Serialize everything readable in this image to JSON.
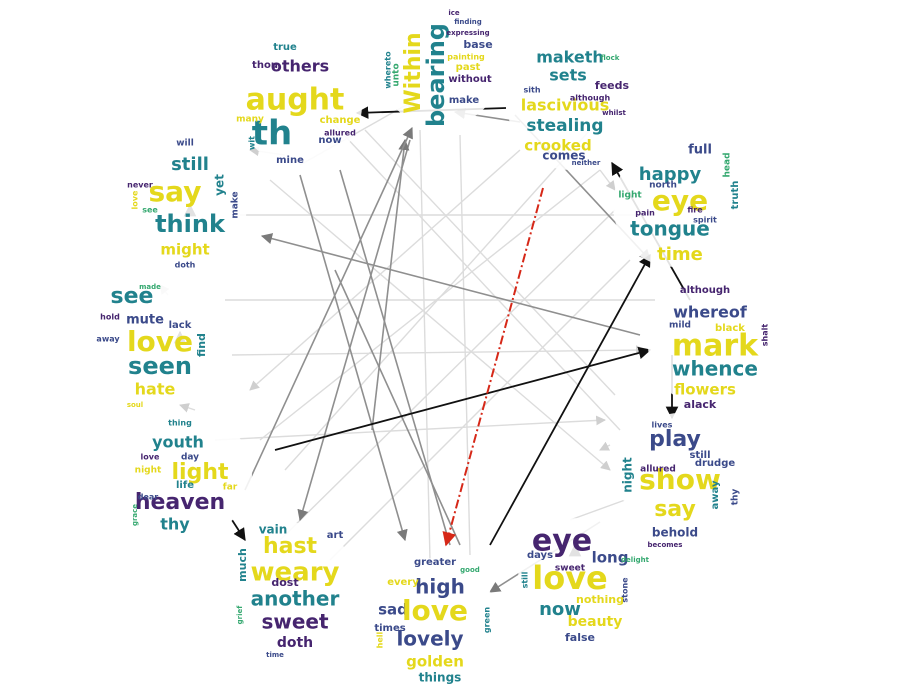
{
  "palette": {
    "purple": "#46256f",
    "navy": "#3b4a8a",
    "teal": "#21828d",
    "green": "#34a86f",
    "lime": "#9fd13b",
    "yellow": "#e4d81c",
    "edge_dark": "#111111",
    "edge_mid": "#8a8a8a",
    "edge_light": "#d6d6d6",
    "edge_highlight": "#d62818"
  },
  "clouds": [
    {
      "id": "c0",
      "words": [
        {
          "t": "Within",
          "s": 22,
          "c": "yellow",
          "r": -90
        },
        {
          "t": "bearing",
          "s": 24,
          "c": "teal",
          "r": -90
        },
        {
          "t": "base",
          "s": 11,
          "c": "navy"
        },
        {
          "t": "without",
          "s": 10,
          "c": "purple"
        },
        {
          "t": "past",
          "s": 10,
          "c": "yellow"
        },
        {
          "t": "make",
          "s": 10,
          "c": "navy"
        },
        {
          "t": "unto",
          "s": 9,
          "c": "green",
          "r": -90
        },
        {
          "t": "painting",
          "s": 8,
          "c": "yellow"
        },
        {
          "t": "whereto",
          "s": 8,
          "c": "teal",
          "r": -90
        },
        {
          "t": "expressing",
          "s": 7,
          "c": "purple"
        },
        {
          "t": "finding",
          "s": 7,
          "c": "navy"
        },
        {
          "t": "ice",
          "s": 7,
          "c": "purple"
        }
      ]
    },
    {
      "id": "c1",
      "words": [
        {
          "t": "maketh",
          "s": 16,
          "c": "teal"
        },
        {
          "t": "sets",
          "s": 16,
          "c": "teal"
        },
        {
          "t": "lascivious",
          "s": 16,
          "c": "yellow"
        },
        {
          "t": "stealing",
          "s": 17,
          "c": "teal"
        },
        {
          "t": "crooked",
          "s": 15,
          "c": "yellow"
        },
        {
          "t": "comes",
          "s": 12,
          "c": "navy"
        },
        {
          "t": "feeds",
          "s": 11,
          "c": "purple"
        },
        {
          "t": "although",
          "s": 8,
          "c": "purple"
        },
        {
          "t": "sith",
          "s": 8,
          "c": "navy"
        },
        {
          "t": "whilst",
          "s": 7,
          "c": "purple"
        },
        {
          "t": "neither",
          "s": 7,
          "c": "navy"
        },
        {
          "t": "flock",
          "s": 7,
          "c": "green"
        }
      ]
    },
    {
      "id": "c2",
      "words": [
        {
          "t": "full",
          "s": 13,
          "c": "navy"
        },
        {
          "t": "happy",
          "s": 18,
          "c": "teal"
        },
        {
          "t": "eye",
          "s": 28,
          "c": "yellow"
        },
        {
          "t": "tongue",
          "s": 20,
          "c": "teal"
        },
        {
          "t": "time",
          "s": 18,
          "c": "yellow"
        },
        {
          "t": "truth",
          "s": 10,
          "c": "teal",
          "r": -90
        },
        {
          "t": "north",
          "s": 9,
          "c": "navy"
        },
        {
          "t": "light",
          "s": 9,
          "c": "green"
        },
        {
          "t": "pain",
          "s": 8,
          "c": "purple"
        },
        {
          "t": "spirit",
          "s": 8,
          "c": "navy"
        },
        {
          "t": "head",
          "s": 9,
          "c": "green",
          "r": -90
        },
        {
          "t": "fire",
          "s": 8,
          "c": "purple"
        }
      ]
    },
    {
      "id": "c3",
      "words": [
        {
          "t": "although",
          "s": 10,
          "c": "purple"
        },
        {
          "t": "whereof",
          "s": 16,
          "c": "navy"
        },
        {
          "t": "mark",
          "s": 30,
          "c": "yellow"
        },
        {
          "t": "whence",
          "s": 20,
          "c": "teal"
        },
        {
          "t": "flowers",
          "s": 15,
          "c": "yellow"
        },
        {
          "t": "alack",
          "s": 11,
          "c": "purple"
        },
        {
          "t": "mild",
          "s": 9,
          "c": "navy"
        },
        {
          "t": "black",
          "s": 10,
          "c": "yellow"
        },
        {
          "t": "shalt",
          "s": 8,
          "c": "purple",
          "r": -90
        }
      ]
    },
    {
      "id": "c4",
      "words": [
        {
          "t": "lives",
          "s": 8,
          "c": "navy"
        },
        {
          "t": "play",
          "s": 22,
          "c": "navy"
        },
        {
          "t": "still",
          "s": 10,
          "c": "navy"
        },
        {
          "t": "drudge",
          "s": 10,
          "c": "navy"
        },
        {
          "t": "show",
          "s": 28,
          "c": "yellow"
        },
        {
          "t": "say",
          "s": 22,
          "c": "yellow"
        },
        {
          "t": "behold",
          "s": 12,
          "c": "navy"
        },
        {
          "t": "night",
          "s": 12,
          "c": "teal",
          "r": -90
        },
        {
          "t": "away",
          "s": 10,
          "c": "teal",
          "r": -90
        },
        {
          "t": "thy",
          "s": 9,
          "c": "navy",
          "r": -90
        },
        {
          "t": "allured",
          "s": 9,
          "c": "purple"
        },
        {
          "t": "becomes",
          "s": 7,
          "c": "purple"
        }
      ]
    },
    {
      "id": "c5",
      "words": [
        {
          "t": "eye",
          "s": 30,
          "c": "purple"
        },
        {
          "t": "long",
          "s": 15,
          "c": "navy"
        },
        {
          "t": "love",
          "s": 32,
          "c": "yellow"
        },
        {
          "t": "now",
          "s": 18,
          "c": "teal"
        },
        {
          "t": "nothing",
          "s": 11,
          "c": "yellow"
        },
        {
          "t": "beauty",
          "s": 14,
          "c": "yellow"
        },
        {
          "t": "false",
          "s": 11,
          "c": "navy"
        },
        {
          "t": "days",
          "s": 10,
          "c": "navy"
        },
        {
          "t": "sweet",
          "s": 9,
          "c": "purple"
        },
        {
          "t": "still",
          "s": 8,
          "c": "teal",
          "r": -90
        },
        {
          "t": "delight",
          "s": 7,
          "c": "green"
        },
        {
          "t": "stone",
          "s": 8,
          "c": "navy",
          "r": -90
        }
      ]
    },
    {
      "id": "c6",
      "words": [
        {
          "t": "greater",
          "s": 10,
          "c": "navy"
        },
        {
          "t": "high",
          "s": 20,
          "c": "navy"
        },
        {
          "t": "every",
          "s": 10,
          "c": "yellow"
        },
        {
          "t": "sad",
          "s": 15,
          "c": "navy"
        },
        {
          "t": "love",
          "s": 28,
          "c": "yellow"
        },
        {
          "t": "times",
          "s": 10,
          "c": "navy"
        },
        {
          "t": "lovely",
          "s": 20,
          "c": "navy"
        },
        {
          "t": "golden",
          "s": 15,
          "c": "yellow"
        },
        {
          "t": "things",
          "s": 12,
          "c": "teal"
        },
        {
          "t": "green",
          "s": 8,
          "c": "teal",
          "r": -90
        },
        {
          "t": "hell",
          "s": 8,
          "c": "yellow",
          "r": -90
        },
        {
          "t": "good",
          "s": 7,
          "c": "green"
        }
      ]
    },
    {
      "id": "c7",
      "words": [
        {
          "t": "vain",
          "s": 12,
          "c": "teal"
        },
        {
          "t": "art",
          "s": 10,
          "c": "navy"
        },
        {
          "t": "hast",
          "s": 22,
          "c": "yellow"
        },
        {
          "t": "weary",
          "s": 26,
          "c": "yellow"
        },
        {
          "t": "another",
          "s": 20,
          "c": "teal"
        },
        {
          "t": "sweet",
          "s": 20,
          "c": "purple"
        },
        {
          "t": "doth",
          "s": 14,
          "c": "purple"
        },
        {
          "t": "dost",
          "s": 11,
          "c": "purple"
        },
        {
          "t": "much",
          "s": 11,
          "c": "teal",
          "r": -90
        },
        {
          "t": "time",
          "s": 7,
          "c": "navy"
        },
        {
          "t": "grief",
          "s": 7,
          "c": "green",
          "r": -90
        }
      ]
    },
    {
      "id": "c8",
      "words": [
        {
          "t": "thing",
          "s": 8,
          "c": "teal"
        },
        {
          "t": "youth",
          "s": 16,
          "c": "teal"
        },
        {
          "t": "light",
          "s": 22,
          "c": "yellow"
        },
        {
          "t": "heaven",
          "s": 22,
          "c": "purple"
        },
        {
          "t": "thy",
          "s": 16,
          "c": "teal"
        },
        {
          "t": "night",
          "s": 9,
          "c": "yellow"
        },
        {
          "t": "day",
          "s": 9,
          "c": "navy"
        },
        {
          "t": "life",
          "s": 10,
          "c": "teal"
        },
        {
          "t": "far",
          "s": 9,
          "c": "yellow"
        },
        {
          "t": "love",
          "s": 8,
          "c": "purple"
        },
        {
          "t": "dear",
          "s": 8,
          "c": "navy"
        },
        {
          "t": "grace",
          "s": 7,
          "c": "green",
          "r": -90
        }
      ]
    },
    {
      "id": "c9",
      "words": [
        {
          "t": "see",
          "s": 22,
          "c": "teal"
        },
        {
          "t": "mute",
          "s": 13,
          "c": "navy"
        },
        {
          "t": "love",
          "s": 28,
          "c": "yellow"
        },
        {
          "t": "seen",
          "s": 24,
          "c": "teal"
        },
        {
          "t": "hate",
          "s": 16,
          "c": "yellow"
        },
        {
          "t": "lack",
          "s": 10,
          "c": "navy"
        },
        {
          "t": "find",
          "s": 11,
          "c": "teal",
          "r": -90
        },
        {
          "t": "hold",
          "s": 8,
          "c": "purple"
        },
        {
          "t": "away",
          "s": 8,
          "c": "navy"
        },
        {
          "t": "made",
          "s": 7,
          "c": "green"
        },
        {
          "t": "soul",
          "s": 7,
          "c": "yellow"
        }
      ]
    },
    {
      "id": "c10",
      "words": [
        {
          "t": "will",
          "s": 9,
          "c": "navy"
        },
        {
          "t": "still",
          "s": 18,
          "c": "teal"
        },
        {
          "t": "say",
          "s": 28,
          "c": "yellow"
        },
        {
          "t": "think",
          "s": 24,
          "c": "teal"
        },
        {
          "t": "might",
          "s": 15,
          "c": "yellow"
        },
        {
          "t": "yet",
          "s": 12,
          "c": "teal",
          "r": -90
        },
        {
          "t": "make",
          "s": 9,
          "c": "navy",
          "r": -90
        },
        {
          "t": "never",
          "s": 8,
          "c": "purple"
        },
        {
          "t": "doth",
          "s": 8,
          "c": "navy"
        },
        {
          "t": "love",
          "s": 8,
          "c": "yellow",
          "r": -90
        },
        {
          "t": "see",
          "s": 8,
          "c": "green"
        }
      ]
    },
    {
      "id": "c11",
      "words": [
        {
          "t": "true",
          "s": 10,
          "c": "teal"
        },
        {
          "t": "thou",
          "s": 10,
          "c": "purple"
        },
        {
          "t": "others",
          "s": 16,
          "c": "purple"
        },
        {
          "t": "aught",
          "s": 30,
          "c": "yellow"
        },
        {
          "t": "th",
          "s": 34,
          "c": "teal"
        },
        {
          "t": "change",
          "s": 10,
          "c": "yellow"
        },
        {
          "t": "now",
          "s": 10,
          "c": "navy"
        },
        {
          "t": "many",
          "s": 9,
          "c": "yellow"
        },
        {
          "t": "mine",
          "s": 10,
          "c": "navy"
        },
        {
          "t": "allured",
          "s": 8,
          "c": "purple"
        },
        {
          "t": "wit",
          "s": 8,
          "c": "teal",
          "r": -90
        }
      ]
    }
  ]
}
